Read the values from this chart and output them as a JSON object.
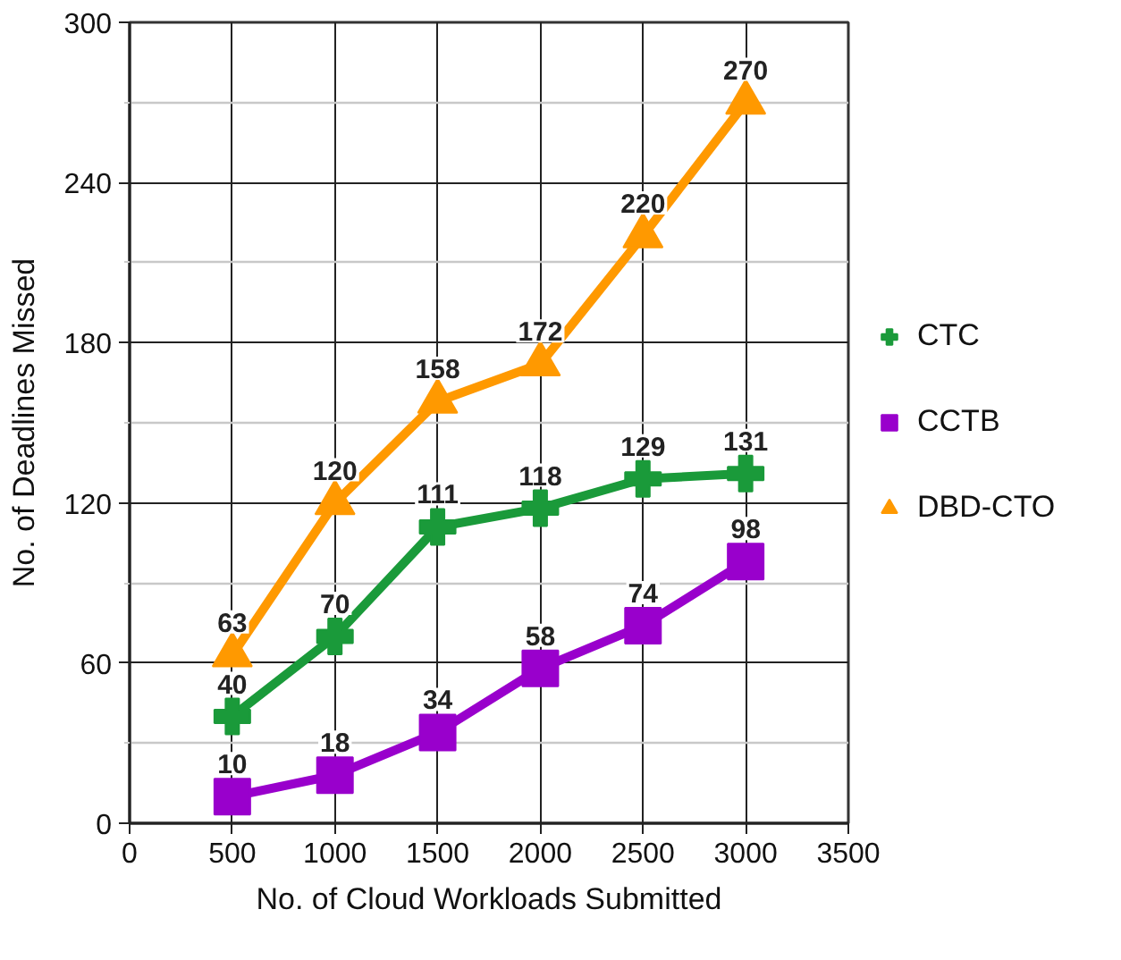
{
  "chart_data": {
    "type": "line",
    "xlabel": "No. of Cloud Workloads Submitted",
    "ylabel": "No. of Deadlines Missed",
    "x": [
      500,
      1000,
      1500,
      2000,
      2500,
      3000
    ],
    "series": [
      {
        "name": "CTC",
        "color": "#1a9a3a",
        "marker": "cross",
        "values": [
          40,
          70,
          111,
          118,
          129,
          131
        ]
      },
      {
        "name": "CCTB",
        "color": "#9900cc",
        "marker": "square",
        "values": [
          10,
          18,
          34,
          58,
          74,
          98
        ]
      },
      {
        "name": "DBD-CTO",
        "color": "#ff9900",
        "marker": "triangle",
        "values": [
          63,
          120,
          158,
          172,
          220,
          270
        ]
      }
    ],
    "xlim": [
      0,
      3500
    ],
    "xticks": [
      0,
      500,
      1000,
      1500,
      2000,
      2500,
      3000,
      3500
    ],
    "ylim": [
      0,
      300
    ],
    "yticks": [
      0,
      {
        "value": 30,
        "label": null
      },
      60,
      {
        "value": 90,
        "label": null
      },
      120,
      {
        "value": 150,
        "label": null
      },
      180,
      {
        "value": 210,
        "label": null
      },
      240,
      {
        "value": 270,
        "label": null
      },
      300
    ],
    "grid": true,
    "legend": "right",
    "data_labels": true,
    "line_style": "solid"
  }
}
